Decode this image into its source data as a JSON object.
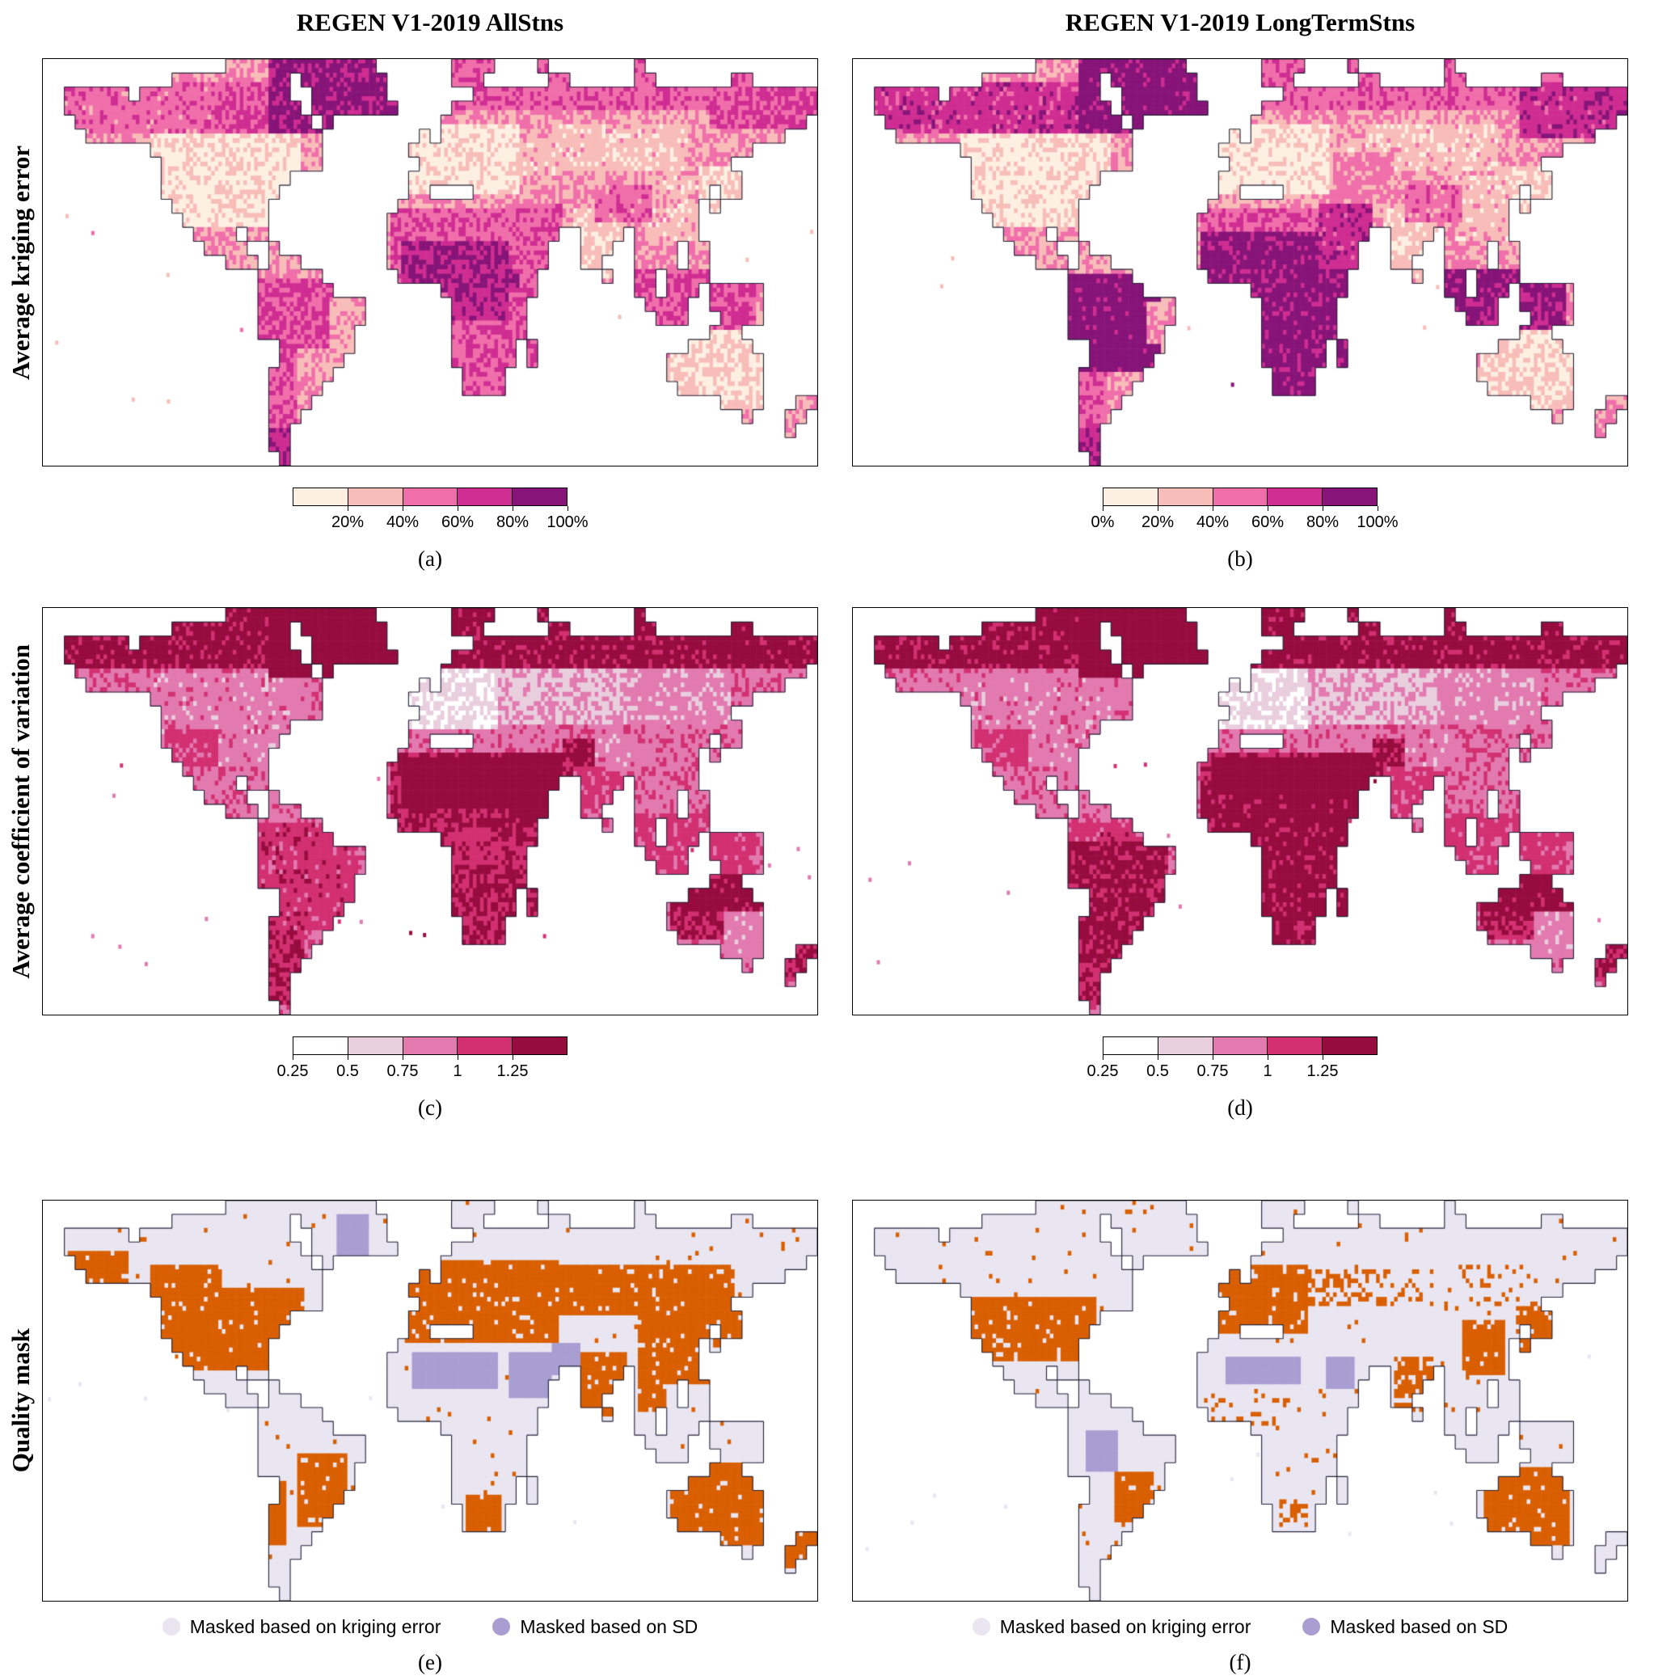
{
  "figure": {
    "column_titles": [
      "REGEN V1-2019 AllStns",
      "REGEN V1-2019 LongTermStns"
    ],
    "rows": [
      {
        "label": "Average kriging error",
        "captions": [
          "(a)",
          "(b)"
        ],
        "colorbars": [
          {
            "palette": "kriging",
            "ticks": [
              {
                "label": "20%",
                "pos": 0.2
              },
              {
                "label": "40%",
                "pos": 0.4
              },
              {
                "label": "60%",
                "pos": 0.6
              },
              {
                "label": "80%",
                "pos": 0.8
              },
              {
                "label": "100%",
                "pos": 1.0
              }
            ]
          },
          {
            "palette": "kriging",
            "ticks": [
              {
                "label": "0%",
                "pos": 0.0
              },
              {
                "label": "20%",
                "pos": 0.2
              },
              {
                "label": "40%",
                "pos": 0.4
              },
              {
                "label": "60%",
                "pos": 0.6
              },
              {
                "label": "80%",
                "pos": 0.8
              },
              {
                "label": "100%",
                "pos": 1.0
              }
            ]
          }
        ]
      },
      {
        "label": "Average coefficient of variation",
        "captions": [
          "(c)",
          "(d)"
        ],
        "colorbars": [
          {
            "palette": "cv",
            "ticks": [
              {
                "label": "0.25",
                "pos": 0.0
              },
              {
                "label": "0.5",
                "pos": 0.2
              },
              {
                "label": "0.75",
                "pos": 0.4
              },
              {
                "label": "1",
                "pos": 0.6
              },
              {
                "label": "1.25",
                "pos": 0.8
              }
            ]
          },
          {
            "palette": "cv",
            "ticks": [
              {
                "label": "0.25",
                "pos": 0.0
              },
              {
                "label": "0.5",
                "pos": 0.2
              },
              {
                "label": "0.75",
                "pos": 0.4
              },
              {
                "label": "1",
                "pos": 0.6
              },
              {
                "label": "1.25",
                "pos": 0.8
              }
            ]
          }
        ]
      },
      {
        "label": "Quality mask",
        "captions": [
          "(e)",
          "(f)"
        ],
        "legend": [
          {
            "label": "Masked based on kriging error",
            "color": "#e9e6f2"
          },
          {
            "label": "Masked based on SD",
            "color": "#a89ed2"
          }
        ]
      }
    ],
    "palettes": {
      "kriging": [
        "#fdf0e2",
        "#f8bdb9",
        "#f06fab",
        "#cf2d92",
        "#871478"
      ],
      "cv": [
        "#ffffff",
        "#e9cede",
        "#e27ab0",
        "#d23071",
        "#970c3f"
      ],
      "mask": {
        "unmasked": "#d95f02",
        "masked_kriging": "#e9e6f2",
        "masked_sd": "#a89ed2"
      }
    }
  },
  "chart_data": [
    {
      "panel": "a",
      "column": "REGEN V1-2019 AllStns",
      "variable": "Average kriging error",
      "type": "heatmap",
      "projection": "global map, lon -180..180, lat 85..-60",
      "colorbar": {
        "tick_labels": [
          "20%",
          "40%",
          "60%",
          "80%",
          "100%"
        ],
        "colors": [
          "#fdf0e2",
          "#f8bdb9",
          "#f06fab",
          "#cf2d92",
          "#871478"
        ]
      },
      "pattern": "Lowest errors (<20-40%) over station-dense regions: contiguous United States, Europe, India, eastern China, Japan and Australia. Highest errors (60-100%) over Greenland, the Arctic coasts, the Sahara/Sahel, central Africa, Amazonia, Arabia and Indonesia."
    },
    {
      "panel": "b",
      "column": "REGEN V1-2019 LongTermStns",
      "variable": "Average kriging error",
      "type": "heatmap",
      "projection": "global map, lon -180..180, lat 85..-60",
      "colorbar": {
        "tick_labels": [
          "0%",
          "20%",
          "40%",
          "60%",
          "80%",
          "100%"
        ],
        "colors": [
          "#fdf0e2",
          "#f8bdb9",
          "#f06fab",
          "#cf2d92",
          "#871478"
        ]
      },
      "pattern": "Similar to (a) but with markedly higher errors: 80-100% (dark purple) over most of South America, Africa, Arabia, Indonesia and high-latitude land."
    },
    {
      "panel": "c",
      "column": "REGEN V1-2019 AllStns",
      "variable": "Average coefficient of variation",
      "type": "heatmap",
      "projection": "global map, lon -180..180, lat 85..-60",
      "colorbar": {
        "tick_labels": [
          "0.25",
          "0.5",
          "0.75",
          "1",
          "1.25"
        ],
        "colors": [
          "#ffffff",
          "#e9cede",
          "#e27ab0",
          "#d23071",
          "#970c3f"
        ]
      },
      "pattern": "Low values (<0.5) over Europe; moderate (0.5-1) over North America and Siberia; high (>1-1.25) over the Sahara, Arabia, the Arctic rim, Greenland, northern Australia and southern Africa."
    },
    {
      "panel": "d",
      "column": "REGEN V1-2019 LongTermStns",
      "variable": "Average coefficient of variation",
      "type": "heatmap",
      "projection": "global map, lon -180..180, lat 85..-60",
      "colorbar": {
        "tick_labels": [
          "0.25",
          "0.5",
          "0.75",
          "1",
          "1.25"
        ],
        "colors": [
          "#ffffff",
          "#e9cede",
          "#e27ab0",
          "#d23071",
          "#970c3f"
        ]
      },
      "pattern": "As (c) with slightly higher values over South America and Africa."
    },
    {
      "panel": "e",
      "column": "REGEN V1-2019 AllStns",
      "variable": "Quality mask",
      "type": "categorical-map",
      "categories": [
        {
          "color": "#d95f02",
          "legend_label": ""
        },
        {
          "color": "#e9e6f2",
          "legend_label": "Masked based on kriging error"
        },
        {
          "color": "#a89ed2",
          "legend_label": "Masked based on SD"
        }
      ],
      "pattern": "Orange (retained) covers North America, Europe, southern Siberia, China, India, southeastern Brazil, South Africa and Australia; kriging-error mask (light lavender) over high latitudes, Amazonia and central Africa; SD mask (purple lavender) over the Sahara, Arabia and central Greenland."
    },
    {
      "panel": "f",
      "column": "REGEN V1-2019 LongTermStns",
      "variable": "Quality mask",
      "type": "categorical-map",
      "categories": [
        {
          "color": "#d95f02",
          "legend_label": ""
        },
        {
          "color": "#e9e6f2",
          "legend_label": "Masked based on kriging error"
        },
        {
          "color": "#a89ed2",
          "legend_label": "Masked based on SD"
        }
      ],
      "pattern": "Retained (orange) area much smaller than (e): mainly the United States, Europe, eastern China, Japan, parts of India, southeastern Brazil and Australia; most other land masked by kriging error, with SD mask over the Sahara, Arabia and western Amazonia."
    }
  ]
}
